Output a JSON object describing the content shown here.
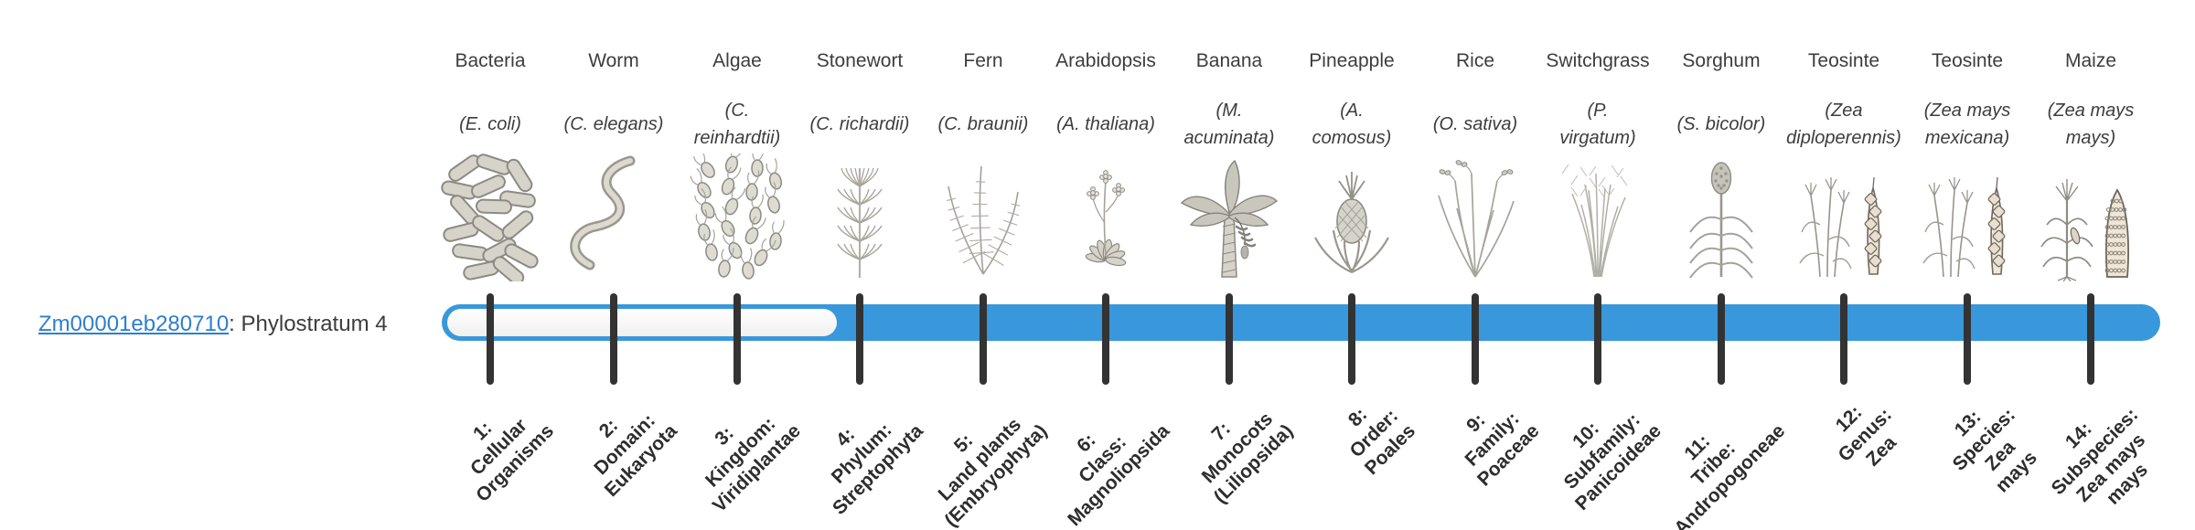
{
  "page": {
    "background": "#ffffff"
  },
  "gene_label": {
    "id": "Zm00001eb280710",
    "separator": ": ",
    "classification": "Phylostratum 4"
  },
  "colors": {
    "bar_fill": "#3898db",
    "bar_track": "#f5f5f5",
    "tick": "#333333",
    "link": "#2c7fd2",
    "text": "#3d3d3d"
  },
  "organisms": [
    {
      "name": "Bacteria",
      "species": "(E. coli)",
      "icon": "bacteria-icon",
      "stratum_label": "1:\nCellular\nOrganisms"
    },
    {
      "name": "Worm",
      "species": "(C. elegans)",
      "icon": "worm-icon",
      "stratum_label": "2:\nDomain:\nEukaryota"
    },
    {
      "name": "Algae",
      "species": "(C.\nreinhardtii)",
      "icon": "algae-icon",
      "stratum_label": "3:\nKingdom:\nViridiplantae"
    },
    {
      "name": "Stonewort",
      "species": "(C. richardii)",
      "icon": "stonewort-icon",
      "stratum_label": "4:\nPhylum:\nStreptophyta"
    },
    {
      "name": "Fern",
      "species": "(C. braunii)",
      "icon": "fern-icon",
      "stratum_label": "5:\nLand plants\n(Embryophyta)"
    },
    {
      "name": "Arabidopsis",
      "species": "(A. thaliana)",
      "icon": "arabidopsis-icon",
      "stratum_label": "6:\nClass:\nMagnoliopsida"
    },
    {
      "name": "Banana",
      "species": "(M.\nacuminata)",
      "icon": "banana-icon",
      "stratum_label": "7:\nMonocots\n(Liliopsida)"
    },
    {
      "name": "Pineapple",
      "species": "(A.\ncomosus)",
      "icon": "pineapple-icon",
      "stratum_label": "8:\nOrder:\nPoales"
    },
    {
      "name": "Rice",
      "species": "(O. sativa)",
      "icon": "rice-icon",
      "stratum_label": "9:\nFamily:\nPoaceae"
    },
    {
      "name": "Switchgrass",
      "species": "(P.\nvirgatum)",
      "icon": "switchgrass-icon",
      "stratum_label": "10:\nSubfamily:\nPanicoideae"
    },
    {
      "name": "Sorghum",
      "species": "(S. bicolor)",
      "icon": "sorghum-icon",
      "stratum_label": "11:\nTribe:\nAndropogoneae"
    },
    {
      "name": "Teosinte",
      "species": "(Zea\ndiploperennis)",
      "icon": "teosinte-diploperennis-icon",
      "stratum_label": "12:\nGenus:\nZea"
    },
    {
      "name": "Teosinte",
      "species": "(Zea mays\nmexicana)",
      "icon": "teosinte-mexicana-icon",
      "stratum_label": "13:\nSpecies:\nZea\nmays"
    },
    {
      "name": "Maize",
      "species": "(Zea mays\nmays)",
      "icon": "maize-icon",
      "stratum_label": "14:\nSubspecies:\nZea mays\nmays"
    }
  ],
  "chart_data": {
    "type": "bar",
    "subtype": "phylostratum-timeline",
    "orientation": "horizontal",
    "gene": "Zm00001eb280710",
    "gene_phylostratum": 4,
    "categories": [
      "1: Cellular Organisms",
      "2: Domain: Eukaryota",
      "3: Kingdom: Viridiplantae",
      "4: Phylum: Streptophyta",
      "5: Land plants (Embryophyta)",
      "6: Class: Magnoliopsida",
      "7: Monocots (Liliopsida)",
      "8: Order: Poales",
      "9: Family: Poaceae",
      "10: Subfamily: Panicoideae",
      "11: Tribe: Andropogoneae",
      "12: Genus: Zea",
      "13: Species: Zea mays",
      "14: Subspecies: Zea mays mays"
    ],
    "category_organisms": [
      "Bacteria (E. coli)",
      "Worm (C. elegans)",
      "Algae (C. reinhardtii)",
      "Stonewort (C. richardii)",
      "Fern (C. braunii)",
      "Arabidopsis (A. thaliana)",
      "Banana (M. acuminata)",
      "Pineapple (A. comosus)",
      "Rice (O. sativa)",
      "Switchgrass (P. virgatum)",
      "Sorghum (S. bicolor)",
      "Teosinte (Zea diploperennis)",
      "Teosinte (Zea mays mexicana)",
      "Maize (Zea mays mays)"
    ],
    "series": [
      {
        "name": "unfilled-strata",
        "from": 1,
        "to": 4,
        "style": "outlined"
      },
      {
        "name": "filled-strata",
        "from": 4,
        "to": 14,
        "style": "filled",
        "color": "#3898db"
      }
    ],
    "xlim": [
      1,
      14
    ],
    "grid": false,
    "legend": false
  }
}
